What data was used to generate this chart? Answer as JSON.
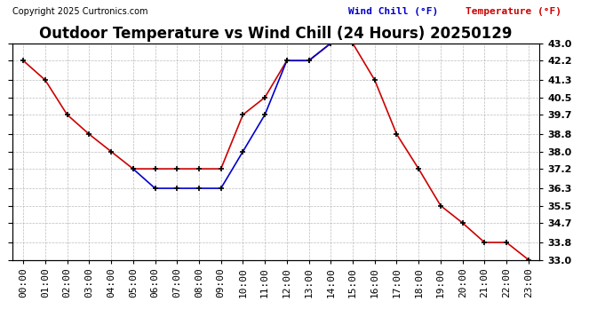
{
  "title": "Outdoor Temperature vs Wind Chill (24 Hours) 20250129",
  "copyright": "Copyright 2025 Curtronics.com",
  "legend_wind_chill": "Wind Chill (°F)",
  "legend_temperature": "Temperature (°F)",
  "hours": [
    0,
    1,
    2,
    3,
    4,
    5,
    6,
    7,
    8,
    9,
    10,
    11,
    12,
    13,
    14,
    15,
    16,
    17,
    18,
    19,
    20,
    21,
    22,
    23
  ],
  "temperature": [
    42.2,
    41.3,
    39.7,
    38.8,
    38.0,
    37.2,
    37.2,
    37.2,
    37.2,
    37.2,
    39.7,
    40.5,
    42.2,
    42.2,
    43.0,
    43.0,
    41.3,
    38.8,
    37.2,
    35.5,
    34.7,
    33.8,
    33.8,
    33.0
  ],
  "wind_chill": [
    null,
    null,
    null,
    null,
    null,
    37.2,
    36.3,
    36.3,
    36.3,
    36.3,
    38.0,
    39.7,
    42.2,
    42.2,
    43.0,
    43.0,
    null,
    null,
    null,
    null,
    null,
    null,
    null,
    null
  ],
  "ylim_min": 33.0,
  "ylim_max": 43.0,
  "yticks": [
    33.0,
    33.8,
    34.7,
    35.5,
    36.3,
    37.2,
    38.0,
    38.8,
    39.7,
    40.5,
    41.3,
    42.2,
    43.0
  ],
  "temp_color": "#cc0000",
  "wind_chill_color": "#0000cc",
  "marker_color": "#000000",
  "bg_color": "#ffffff",
  "grid_color": "#aaaaaa",
  "title_fontsize": 12,
  "axis_fontsize": 8,
  "copyright_fontsize": 7,
  "legend_fontsize": 8
}
